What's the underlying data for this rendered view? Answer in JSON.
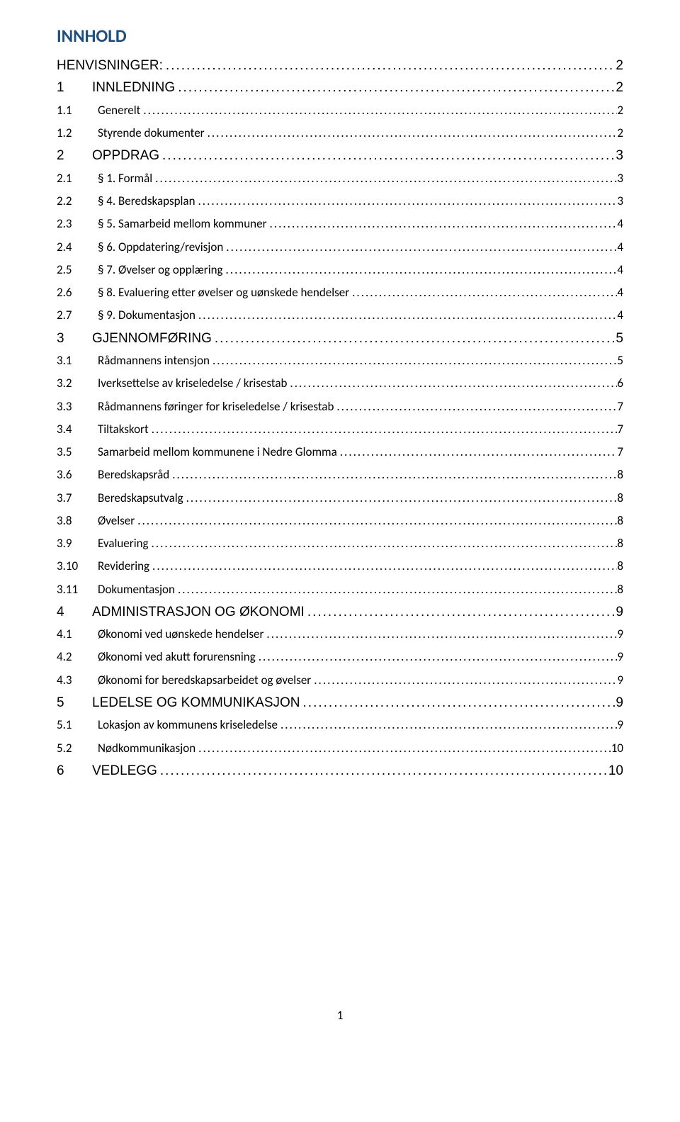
{
  "title": "INNHOLD",
  "toc": [
    {
      "level": 0,
      "num": "",
      "label": "HENVISNINGER:",
      "page": "2"
    },
    {
      "level": 1,
      "num": "1",
      "label": "INNLEDNING",
      "page": "2"
    },
    {
      "level": 2,
      "num": "1.1",
      "label": "Generelt",
      "page": "2"
    },
    {
      "level": 2,
      "num": "1.2",
      "label": "Styrende dokumenter",
      "page": "2"
    },
    {
      "level": 1,
      "num": "2",
      "label": "OPPDRAG",
      "page": "3"
    },
    {
      "level": 2,
      "num": "2.1",
      "label": "§ 1. Formål",
      "page": "3"
    },
    {
      "level": 2,
      "num": "2.2",
      "label": "§ 4. Beredskapsplan",
      "page": "3"
    },
    {
      "level": 2,
      "num": "2.3",
      "label": "§ 5. Samarbeid mellom kommuner",
      "page": "4"
    },
    {
      "level": 2,
      "num": "2.4",
      "label": "§ 6. Oppdatering/revisjon",
      "page": "4"
    },
    {
      "level": 2,
      "num": "2.5",
      "label": "§ 7. Øvelser og opplæring",
      "page": "4"
    },
    {
      "level": 2,
      "num": "2.6",
      "label": "§ 8. Evaluering etter øvelser og uønskede hendelser",
      "page": "4"
    },
    {
      "level": 2,
      "num": "2.7",
      "label": "§ 9. Dokumentasjon",
      "page": "4"
    },
    {
      "level": 1,
      "num": "3",
      "label": "GJENNOMFØRING",
      "page": "5"
    },
    {
      "level": 2,
      "num": "3.1",
      "label": "Rådmannens intensjon",
      "page": "5"
    },
    {
      "level": 2,
      "num": "3.2",
      "label": "Iverksettelse av kriseledelse / krisestab",
      "page": "6"
    },
    {
      "level": 2,
      "num": "3.3",
      "label": "Rådmannens føringer for kriseledelse / krisestab",
      "page": "7"
    },
    {
      "level": 2,
      "num": "3.4",
      "label": "Tiltakskort",
      "page": "7"
    },
    {
      "level": 2,
      "num": "3.5",
      "label": "Samarbeid mellom kommunene i Nedre Glomma",
      "page": "7"
    },
    {
      "level": 2,
      "num": "3.6",
      "label": "Beredskapsråd",
      "page": "8"
    },
    {
      "level": 2,
      "num": "3.7",
      "label": "Beredskapsutvalg",
      "page": "8"
    },
    {
      "level": 2,
      "num": "3.8",
      "label": "Øvelser",
      "page": "8"
    },
    {
      "level": 2,
      "num": "3.9",
      "label": "Evaluering",
      "page": "8"
    },
    {
      "level": 2,
      "num": "3.10",
      "label": "Revidering",
      "page": "8"
    },
    {
      "level": 2,
      "num": "3.11",
      "label": "Dokumentasjon",
      "page": "8"
    },
    {
      "level": 1,
      "num": "4",
      "label": "ADMINISTRASJON OG ØKONOMI",
      "page": "9"
    },
    {
      "level": 2,
      "num": "4.1",
      "label": "Økonomi ved uønskede hendelser",
      "page": "9"
    },
    {
      "level": 2,
      "num": "4.2",
      "label": "Økonomi ved akutt forurensning",
      "page": "9"
    },
    {
      "level": 2,
      "num": "4.3",
      "label": "Økonomi for beredskapsarbeidet og øvelser",
      "page": "9"
    },
    {
      "level": 1,
      "num": "5",
      "label": "LEDELSE OG KOMMUNIKASJON",
      "page": "9"
    },
    {
      "level": 2,
      "num": "5.1",
      "label": "Lokasjon av kommunens kriseledelse",
      "page": "9"
    },
    {
      "level": 2,
      "num": "5.2",
      "label": "Nødkommunikasjon",
      "page": "10"
    },
    {
      "level": 1,
      "num": "6",
      "label": "VEDLEGG",
      "page": "10"
    }
  ],
  "pageNumber": "1",
  "colors": {
    "title": "#1f4e79",
    "text": "#000000",
    "background": "#ffffff"
  },
  "typography": {
    "title_fontsize": 25,
    "level1_fontsize": 19,
    "level2_fontsize": 17,
    "title_family": "Calibri",
    "level1_family": "Arial",
    "level2_family": "Calibri"
  }
}
